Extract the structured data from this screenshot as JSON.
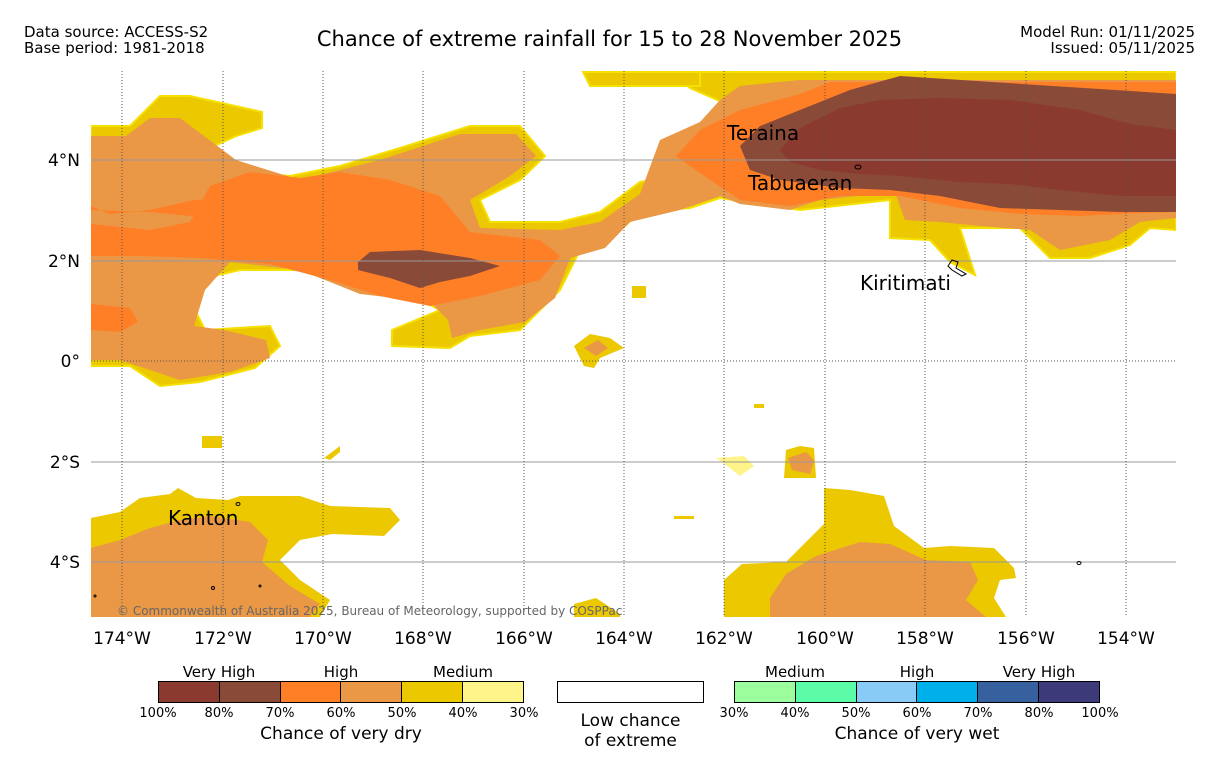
{
  "header": {
    "source_line1": "Data source: ACCESS-S2",
    "source_line2": "Base period: 1981-2018",
    "title": "Chance of extreme rainfall for 15 to 28 November 2025",
    "run_line1": "Model Run: 01/11/2025",
    "run_line2": "Issued: 05/11/2025"
  },
  "map": {
    "lon_ticks": [
      "174°W",
      "172°W",
      "170°W",
      "168°W",
      "166°W",
      "164°W",
      "162°W",
      "160°W",
      "158°W",
      "156°W",
      "154°W"
    ],
    "lat_ticks": [
      "4°N",
      "2°N",
      "0°",
      "2°S",
      "4°S"
    ],
    "places": [
      "Teraina",
      "Tabuaeran",
      "Kiritimati",
      "Kanton"
    ],
    "copyright": "© Commonwealth of Australia 2025, Bureau of Meteorology, supported by COSPPac"
  },
  "legend": {
    "dry": {
      "title": "Chance of very dry",
      "headers": [
        "Very High",
        "High",
        "Medium"
      ],
      "ticks": [
        "100%",
        "80%",
        "70%",
        "60%",
        "50%",
        "40%",
        "30%"
      ],
      "colors": [
        "#8b3a30",
        "#8a4a38",
        "#fe7f26",
        "#ea9846",
        "#ebc800",
        "#fff48a"
      ]
    },
    "low": {
      "line1": "Low chance",
      "line2": "of extreme"
    },
    "wet": {
      "title": "Chance of very wet",
      "headers": [
        "Medium",
        "High",
        "Very High"
      ],
      "ticks": [
        "30%",
        "40%",
        "50%",
        "60%",
        "70%",
        "80%",
        "100%"
      ],
      "colors": [
        "#9bfd9b",
        "#5bfba7",
        "#88cbf7",
        "#00b0ea",
        "#37609f",
        "#3d3a79"
      ]
    }
  }
}
